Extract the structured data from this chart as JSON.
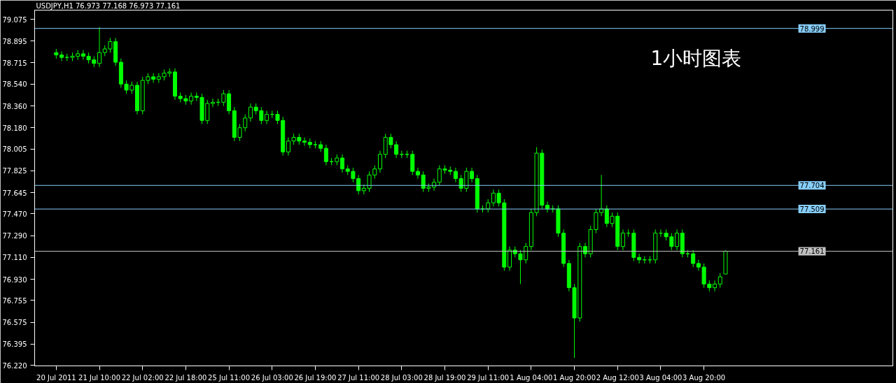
{
  "chart_data": {
    "type": "candlestick",
    "title": "USDJPY,H1  76.973 77.168 76.973 77.161",
    "annotations": [
      "1小时图表"
    ],
    "color": "#00ff00",
    "grid": false,
    "ylim": [
      76.215,
      79.15
    ],
    "categories": [
      "20 Jul 2011",
      null,
      null,
      null,
      null,
      null,
      null,
      null,
      "21 Jul 10:00",
      null,
      null,
      null,
      null,
      null,
      null,
      null,
      "22 Jul 02:00",
      null,
      null,
      null,
      null,
      null,
      null,
      null,
      "22 Jul 18:00",
      null,
      null,
      null,
      null,
      null,
      null,
      null,
      "25 Jul 11:00",
      null,
      null,
      null,
      null,
      null,
      null,
      null,
      "26 Jul 03:00",
      null,
      null,
      null,
      null,
      null,
      null,
      null,
      "26 Jul 19:00",
      null,
      null,
      null,
      null,
      null,
      null,
      null,
      "27 Jul 11:00",
      null,
      null,
      null,
      null,
      null,
      null,
      null,
      "28 Jul 03:00",
      null,
      null,
      null,
      null,
      null,
      null,
      null,
      "28 Jul 19:00",
      null,
      null,
      null,
      null,
      null,
      null,
      null,
      "29 Jul 11:00",
      null,
      null,
      null,
      null,
      null,
      null,
      null,
      "1 Aug 04:00",
      null,
      null,
      null,
      null,
      null,
      null,
      null,
      "1 Aug 20:00",
      null,
      null,
      null,
      null,
      null,
      null,
      null,
      "2 Aug 12:00",
      null,
      null,
      null,
      null,
      null,
      null,
      null,
      "3 Aug 04:00",
      null,
      null,
      null,
      null,
      null,
      null,
      null,
      "3 Aug 20:00",
      null,
      null,
      null,
      null
    ],
    "yticks": [
      {
        "value": 79.075,
        "label": "79.075"
      },
      {
        "value": 78.895,
        "label": "78.895"
      },
      {
        "value": 78.715,
        "label": "78.715"
      },
      {
        "value": 78.54,
        "label": "78.540"
      },
      {
        "value": 78.36,
        "label": "78.360"
      },
      {
        "value": 78.18,
        "label": "78.180"
      },
      {
        "value": 78.005,
        "label": "78.005"
      },
      {
        "value": 77.825,
        "label": "77.825"
      },
      {
        "value": 77.645,
        "label": "77.645"
      },
      {
        "value": 77.47,
        "label": "77.470"
      },
      {
        "value": 77.29,
        "label": "77.290"
      },
      {
        "value": 77.11,
        "label": "77.110"
      },
      {
        "value": 76.93,
        "label": "76.930"
      },
      {
        "value": 76.755,
        "label": "76.755"
      },
      {
        "value": 76.575,
        "label": "76.575"
      },
      {
        "value": 76.395,
        "label": "76.395"
      },
      {
        "value": 76.22,
        "label": "76.220"
      }
    ],
    "ref_lines": [
      {
        "axis": "y",
        "value": 78.999,
        "label": "78.999",
        "color": "#87cefa"
      },
      {
        "axis": "y",
        "value": 77.704,
        "label": "77.704",
        "color": "#87cefa"
      },
      {
        "axis": "y",
        "value": 77.509,
        "label": "77.509",
        "color": "#87cefa"
      },
      {
        "axis": "y",
        "value": 77.161,
        "label": "77.161",
        "color": "#c0c0c0"
      }
    ],
    "ohlc": [
      [
        78.8,
        78.83,
        78.75,
        78.78
      ],
      [
        78.78,
        78.81,
        78.73,
        78.76
      ],
      [
        78.76,
        78.79,
        78.73,
        78.76
      ],
      [
        78.76,
        78.8,
        78.73,
        78.77
      ],
      [
        78.77,
        78.82,
        78.74,
        78.79
      ],
      [
        78.79,
        78.82,
        78.74,
        78.77
      ],
      [
        78.77,
        78.8,
        78.71,
        78.74
      ],
      [
        78.74,
        78.77,
        78.68,
        78.71
      ],
      [
        78.71,
        79.01,
        78.68,
        78.8
      ],
      [
        78.8,
        78.86,
        78.77,
        78.83
      ],
      [
        78.83,
        78.92,
        78.8,
        78.89
      ],
      [
        78.89,
        78.92,
        78.69,
        78.72
      ],
      [
        78.72,
        78.75,
        78.51,
        78.54
      ],
      [
        78.54,
        78.57,
        78.46,
        78.49
      ],
      [
        78.49,
        78.56,
        78.46,
        78.53
      ],
      [
        78.53,
        78.56,
        78.29,
        78.32
      ],
      [
        78.32,
        78.6,
        78.29,
        78.57
      ],
      [
        78.57,
        78.63,
        78.54,
        78.6
      ],
      [
        78.6,
        78.63,
        78.55,
        78.58
      ],
      [
        78.58,
        78.63,
        78.55,
        78.6
      ],
      [
        78.6,
        78.66,
        78.57,
        78.63
      ],
      [
        78.63,
        78.67,
        78.6,
        78.64
      ],
      [
        78.64,
        78.67,
        78.41,
        78.44
      ],
      [
        78.44,
        78.47,
        78.39,
        78.42
      ],
      [
        78.42,
        78.45,
        78.37,
        78.4
      ],
      [
        78.4,
        78.47,
        78.37,
        78.44
      ],
      [
        78.44,
        78.47,
        78.4,
        78.43
      ],
      [
        78.43,
        78.46,
        78.21,
        78.24
      ],
      [
        78.24,
        78.41,
        78.21,
        78.38
      ],
      [
        78.38,
        78.42,
        78.35,
        78.39
      ],
      [
        78.39,
        78.42,
        78.36,
        78.39
      ],
      [
        78.39,
        78.49,
        78.36,
        78.46
      ],
      [
        78.46,
        78.49,
        78.29,
        78.32
      ],
      [
        78.32,
        78.35,
        78.07,
        78.1
      ],
      [
        78.1,
        78.21,
        78.07,
        78.18
      ],
      [
        78.18,
        78.29,
        78.15,
        78.26
      ],
      [
        78.26,
        78.38,
        78.23,
        78.35
      ],
      [
        78.35,
        78.38,
        78.29,
        78.32
      ],
      [
        78.32,
        78.35,
        78.21,
        78.24
      ],
      [
        78.24,
        78.32,
        78.21,
        78.29
      ],
      [
        78.29,
        78.32,
        78.26,
        78.29
      ],
      [
        78.29,
        78.32,
        78.21,
        78.24
      ],
      [
        78.24,
        78.27,
        77.95,
        77.98
      ],
      [
        77.98,
        78.1,
        77.95,
        78.07
      ],
      [
        78.07,
        78.13,
        78.04,
        78.1
      ],
      [
        78.1,
        78.13,
        78.04,
        78.07
      ],
      [
        78.07,
        78.1,
        78.03,
        78.06
      ],
      [
        78.06,
        78.09,
        78.01,
        78.04
      ],
      [
        78.04,
        78.07,
        78.01,
        78.04
      ],
      [
        78.04,
        78.07,
        77.98,
        78.01
      ],
      [
        78.01,
        78.04,
        77.87,
        77.9
      ],
      [
        77.9,
        77.93,
        77.87,
        77.9
      ],
      [
        77.9,
        77.96,
        77.87,
        77.93
      ],
      [
        77.93,
        77.96,
        77.81,
        77.84
      ],
      [
        77.84,
        77.87,
        77.79,
        77.82
      ],
      [
        77.82,
        77.85,
        77.73,
        77.76
      ],
      [
        77.76,
        77.79,
        77.63,
        77.66
      ],
      [
        77.66,
        77.71,
        77.63,
        77.68
      ],
      [
        77.68,
        77.82,
        77.65,
        77.79
      ],
      [
        77.79,
        77.87,
        77.76,
        77.84
      ],
      [
        77.84,
        77.99,
        77.81,
        77.96
      ],
      [
        77.96,
        78.13,
        77.93,
        78.1
      ],
      [
        78.1,
        78.13,
        78.01,
        78.04
      ],
      [
        78.04,
        78.07,
        77.93,
        77.96
      ],
      [
        77.96,
        77.99,
        77.93,
        77.96
      ],
      [
        77.96,
        77.99,
        77.93,
        77.96
      ],
      [
        77.96,
        77.99,
        77.79,
        77.82
      ],
      [
        77.82,
        77.85,
        77.76,
        77.79
      ],
      [
        77.79,
        77.82,
        77.65,
        77.68
      ],
      [
        77.68,
        77.72,
        77.65,
        77.69
      ],
      [
        77.69,
        77.76,
        77.66,
        77.73
      ],
      [
        77.73,
        77.87,
        77.7,
        77.84
      ],
      [
        77.84,
        77.87,
        77.8,
        77.83
      ],
      [
        77.83,
        77.86,
        77.79,
        77.82
      ],
      [
        77.82,
        77.85,
        77.73,
        77.76
      ],
      [
        77.76,
        77.79,
        77.65,
        77.68
      ],
      [
        77.68,
        77.85,
        77.65,
        77.82
      ],
      [
        77.82,
        77.85,
        77.73,
        77.76
      ],
      [
        77.76,
        77.79,
        77.48,
        77.51
      ],
      [
        77.51,
        77.54,
        77.48,
        77.51
      ],
      [
        77.51,
        77.59,
        77.48,
        77.56
      ],
      [
        77.56,
        77.67,
        77.53,
        77.64
      ],
      [
        77.64,
        77.67,
        77.53,
        77.56
      ],
      [
        77.56,
        77.59,
        77.0,
        77.03
      ],
      [
        77.03,
        77.2,
        77.0,
        77.17
      ],
      [
        77.17,
        77.2,
        77.11,
        77.14
      ],
      [
        77.14,
        77.17,
        76.89,
        77.09
      ],
      [
        77.09,
        77.23,
        77.06,
        77.2
      ],
      [
        77.2,
        77.51,
        77.17,
        77.48
      ],
      [
        77.48,
        78.02,
        77.45,
        77.97
      ],
      [
        77.97,
        78.0,
        77.51,
        77.54
      ],
      [
        77.54,
        77.57,
        77.48,
        77.51
      ],
      [
        77.51,
        77.54,
        77.48,
        77.51
      ],
      [
        77.51,
        77.54,
        77.28,
        77.31
      ],
      [
        77.31,
        77.34,
        77.03,
        77.06
      ],
      [
        77.06,
        77.09,
        76.83,
        76.86
      ],
      [
        76.86,
        76.89,
        76.28,
        76.61
      ],
      [
        76.61,
        77.23,
        76.58,
        77.2
      ],
      [
        77.2,
        77.23,
        77.11,
        77.14
      ],
      [
        77.14,
        77.37,
        77.11,
        77.34
      ],
      [
        77.34,
        77.51,
        77.31,
        77.48
      ],
      [
        77.48,
        77.79,
        77.45,
        77.51
      ],
      [
        77.51,
        77.54,
        77.36,
        77.39
      ],
      [
        77.39,
        77.48,
        77.36,
        77.45
      ],
      [
        77.45,
        77.48,
        77.17,
        77.2
      ],
      [
        77.2,
        77.34,
        77.17,
        77.31
      ],
      [
        77.31,
        77.34,
        77.28,
        77.31
      ],
      [
        77.31,
        77.34,
        77.08,
        77.11
      ],
      [
        77.11,
        77.14,
        77.06,
        77.09
      ],
      [
        77.09,
        77.12,
        77.06,
        77.09
      ],
      [
        77.09,
        77.12,
        77.06,
        77.09
      ],
      [
        77.09,
        77.34,
        77.06,
        77.31
      ],
      [
        77.31,
        77.34,
        77.28,
        77.31
      ],
      [
        77.31,
        77.34,
        77.25,
        77.28
      ],
      [
        77.28,
        77.31,
        77.17,
        77.2
      ],
      [
        77.2,
        77.34,
        77.17,
        77.31
      ],
      [
        77.31,
        77.34,
        77.11,
        77.14
      ],
      [
        77.14,
        77.17,
        77.11,
        77.14
      ],
      [
        77.14,
        77.17,
        77.03,
        77.06
      ],
      [
        77.06,
        77.09,
        77.0,
        77.03
      ],
      [
        77.03,
        77.06,
        76.86,
        76.89
      ],
      [
        76.89,
        76.92,
        76.83,
        76.86
      ],
      [
        76.86,
        76.92,
        76.83,
        76.89
      ],
      [
        76.89,
        76.98,
        76.86,
        76.95
      ],
      [
        76.973,
        77.168,
        76.973,
        77.161
      ]
    ]
  }
}
